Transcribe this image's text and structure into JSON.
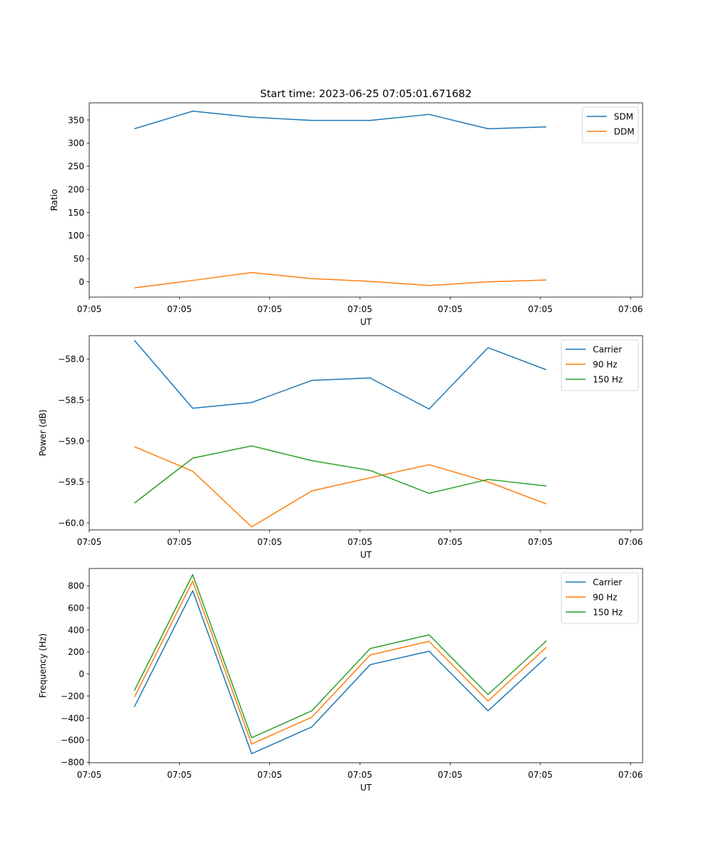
{
  "figure": {
    "title": "Start time: 2023-06-25 07:05:01.671682"
  },
  "chart_data": [
    {
      "type": "line",
      "xlabel": "UT",
      "ylabel": "Ratio",
      "xlim": [
        0,
        9.2
      ],
      "ylim": [
        -33,
        387
      ],
      "yticks": [
        0,
        50,
        100,
        150,
        200,
        250,
        300,
        350
      ],
      "xticks": [
        0,
        1.5,
        3,
        4.5,
        6,
        7.5,
        9
      ],
      "xticklabels": [
        "07:05",
        "07:05",
        "07:05",
        "07:05",
        "07:05",
        "07:05",
        "07:06"
      ],
      "legend_position": "top-right",
      "grid": false,
      "x": [
        0.75,
        1.72,
        2.7,
        3.7,
        4.67,
        5.65,
        6.63,
        7.6
      ],
      "series": [
        {
          "name": "SDM",
          "color": "#1f77b4",
          "values": [
            331,
            369,
            356,
            349,
            349,
            362,
            331,
            335
          ]
        },
        {
          "name": "DDM",
          "color": "#ff7f0e",
          "values": [
            -13,
            3,
            20,
            7,
            1,
            -8,
            0,
            4
          ]
        }
      ]
    },
    {
      "type": "line",
      "xlabel": "UT",
      "ylabel": "Power (dB)",
      "xlim": [
        0,
        9.2
      ],
      "ylim": [
        -60.087,
        -57.713
      ],
      "yticks": [
        -60.0,
        -59.5,
        -59.0,
        -58.5,
        -58.0
      ],
      "yticklabels": [
        "−60.0",
        "−59.5",
        "−59.0",
        "−58.5",
        "−58.0"
      ],
      "xticks": [
        0,
        1.5,
        3,
        4.5,
        6,
        7.5,
        9
      ],
      "xticklabels": [
        "07:05",
        "07:05",
        "07:05",
        "07:05",
        "07:05",
        "07:05",
        "07:06"
      ],
      "legend_position": "top-right",
      "grid": false,
      "x": [
        0.75,
        1.72,
        2.7,
        3.7,
        4.67,
        5.65,
        6.63,
        7.6
      ],
      "series": [
        {
          "name": "Carrier",
          "color": "#1f77b4",
          "values": [
            -57.77,
            -58.6,
            -58.53,
            -58.26,
            -58.23,
            -58.61,
            -57.86,
            -58.13
          ]
        },
        {
          "name": "90 Hz",
          "color": "#ff7f0e",
          "values": [
            -59.07,
            -59.37,
            -60.05,
            -59.61,
            -59.45,
            -59.29,
            -59.5,
            -59.77
          ]
        },
        {
          "name": "150 Hz",
          "color": "#2ca02c",
          "values": [
            -59.76,
            -59.21,
            -59.06,
            -59.24,
            -59.36,
            -59.64,
            -59.47,
            -59.55
          ]
        }
      ]
    },
    {
      "type": "line",
      "xlabel": "UT",
      "ylabel": "Frequency (Hz)",
      "xlim": [
        0,
        9.2
      ],
      "ylim": [
        -805,
        958
      ],
      "yticks": [
        -800,
        -600,
        -400,
        -200,
        0,
        200,
        400,
        600,
        800
      ],
      "yticklabels": [
        "−800",
        "−600",
        "−400",
        "−200",
        "0",
        "200",
        "400",
        "600",
        "800"
      ],
      "xticks": [
        0,
        1.5,
        3,
        4.5,
        6,
        7.5,
        9
      ],
      "xticklabels": [
        "07:05",
        "07:05",
        "07:05",
        "07:05",
        "07:05",
        "07:05",
        "07:06"
      ],
      "legend_position": "top-right",
      "grid": false,
      "x": [
        0.75,
        1.72,
        2.7,
        3.7,
        4.67,
        5.65,
        6.63,
        7.6
      ],
      "series": [
        {
          "name": "Carrier",
          "color": "#1f77b4",
          "values": [
            -298,
            756,
            -723,
            -480,
            85,
            207,
            -334,
            153
          ]
        },
        {
          "name": "90 Hz",
          "color": "#ff7f0e",
          "values": [
            -210,
            843,
            -635,
            -392,
            173,
            297,
            -245,
            243
          ]
        },
        {
          "name": "150 Hz",
          "color": "#2ca02c",
          "values": [
            -150,
            902,
            -578,
            -334,
            231,
            356,
            -186,
            301
          ]
        }
      ]
    }
  ]
}
